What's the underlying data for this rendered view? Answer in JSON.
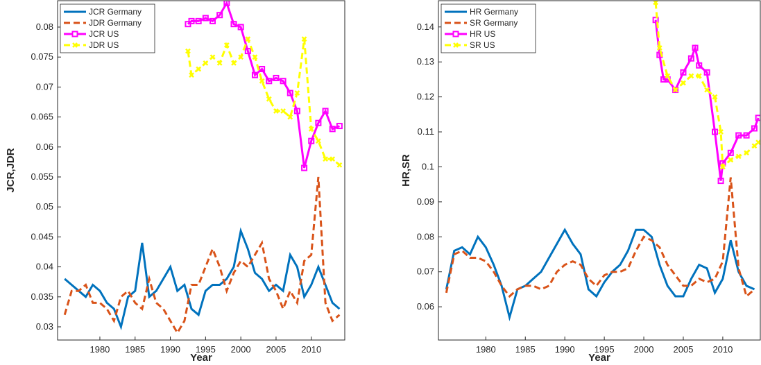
{
  "chart_data": [
    {
      "type": "line",
      "xlabel": "Year",
      "ylabel": "JCR,JDR",
      "xlim": [
        1974,
        2014.75
      ],
      "ylim": [
        0.0278,
        0.0844
      ],
      "xticks": [
        1980,
        1985,
        1990,
        1995,
        2000,
        2005,
        2010
      ],
      "yticks": [
        0.03,
        0.035,
        0.04,
        0.045,
        0.05,
        0.055,
        0.06,
        0.065,
        0.07,
        0.075,
        0.08
      ],
      "legend": "upper left",
      "series": [
        {
          "name": "JCR Germany",
          "color": "#0072bd",
          "dash": false,
          "marker": "none",
          "x": [
            1975,
            1976,
            1977,
            1978,
            1979,
            1980,
            1981,
            1982,
            1983,
            1984,
            1985,
            1986,
            1987,
            1988,
            1989,
            1990,
            1991,
            1992,
            1993,
            1994,
            1995,
            1996,
            1997,
            1998,
            1999,
            2000,
            2001,
            2002,
            2003,
            2004,
            2005,
            2006,
            2007,
            2008,
            2009,
            2010,
            2011,
            2012,
            2013,
            2014
          ],
          "values": [
            0.038,
            0.037,
            0.036,
            0.035,
            0.037,
            0.036,
            0.034,
            0.033,
            0.03,
            0.035,
            0.036,
            0.044,
            0.035,
            0.036,
            0.038,
            0.04,
            0.036,
            0.037,
            0.033,
            0.032,
            0.036,
            0.037,
            0.037,
            0.038,
            0.04,
            0.046,
            0.043,
            0.039,
            0.038,
            0.036,
            0.037,
            0.036,
            0.042,
            0.04,
            0.035,
            0.037,
            0.04,
            0.037,
            0.034,
            0.033
          ]
        },
        {
          "name": "JDR Germany",
          "color": "#d95319",
          "dash": true,
          "marker": "none",
          "x": [
            1975,
            1976,
            1977,
            1978,
            1979,
            1980,
            1981,
            1982,
            1983,
            1984,
            1985,
            1986,
            1987,
            1988,
            1989,
            1990,
            1991,
            1992,
            1993,
            1994,
            1995,
            1996,
            1997,
            1998,
            1999,
            2000,
            2001,
            2002,
            2003,
            2004,
            2005,
            2006,
            2007,
            2008,
            2009,
            2010,
            2011,
            2012,
            2013,
            2014
          ],
          "values": [
            0.032,
            0.036,
            0.036,
            0.037,
            0.034,
            0.034,
            0.033,
            0.031,
            0.035,
            0.036,
            0.034,
            0.033,
            0.038,
            0.034,
            0.033,
            0.031,
            0.029,
            0.031,
            0.037,
            0.037,
            0.04,
            0.043,
            0.04,
            0.036,
            0.039,
            0.041,
            0.04,
            0.042,
            0.044,
            0.038,
            0.036,
            0.033,
            0.036,
            0.034,
            0.041,
            0.042,
            0.055,
            0.034,
            0.031,
            0.032
          ]
        },
        {
          "name": "JCR US",
          "color": "#ff00ff",
          "dash": false,
          "marker": "square",
          "x": [
            1992.5,
            1993,
            1994,
            1995,
            1996,
            1997,
            1998,
            1999,
            2000,
            2001,
            2002,
            2003,
            2004,
            2005,
            2006,
            2007,
            2008,
            2009,
            2010,
            2011,
            2012,
            2013,
            2014
          ],
          "values": [
            0.0805,
            0.081,
            0.081,
            0.0815,
            0.081,
            0.082,
            0.084,
            0.0805,
            0.08,
            0.076,
            0.072,
            0.073,
            0.071,
            0.0715,
            0.071,
            0.069,
            0.066,
            0.0565,
            0.061,
            0.064,
            0.066,
            0.063,
            0.0635
          ]
        },
        {
          "name": "JDR US",
          "color": "#ffff00",
          "dash": true,
          "marker": "x",
          "x": [
            1992.5,
            1993,
            1994,
            1995,
            1996,
            1997,
            1998,
            1999,
            2000,
            2001,
            2002,
            2003,
            2004,
            2005,
            2006,
            2007,
            2008,
            2009,
            2010,
            2011,
            2012,
            2013,
            2014
          ],
          "values": [
            0.076,
            0.072,
            0.073,
            0.074,
            0.075,
            0.074,
            0.077,
            0.074,
            0.075,
            0.078,
            0.075,
            0.071,
            0.068,
            0.066,
            0.066,
            0.065,
            0.069,
            0.078,
            0.063,
            0.061,
            0.058,
            0.058,
            0.057
          ]
        }
      ]
    },
    {
      "type": "line",
      "xlabel": "Year",
      "ylabel": "HR,SR",
      "xlim": [
        1974,
        2014.75
      ],
      "ylim": [
        0.0505,
        0.1475
      ],
      "xticks": [
        1980,
        1985,
        1990,
        1995,
        2000,
        2005,
        2010
      ],
      "yticks": [
        0.06,
        0.07,
        0.08,
        0.09,
        0.1,
        0.11,
        0.12,
        0.13,
        0.14
      ],
      "legend": "upper left",
      "series": [
        {
          "name": "HR Germany",
          "color": "#0072bd",
          "dash": false,
          "marker": "none",
          "x": [
            1975,
            1976,
            1977,
            1978,
            1979,
            1980,
            1981,
            1982,
            1983,
            1984,
            1985,
            1986,
            1987,
            1988,
            1989,
            1990,
            1991,
            1992,
            1993,
            1994,
            1995,
            1996,
            1997,
            1998,
            1999,
            2000,
            2001,
            2002,
            2003,
            2004,
            2005,
            2006,
            2007,
            2008,
            2009,
            2010,
            2011,
            2012,
            2013,
            2014
          ],
          "values": [
            0.065,
            0.076,
            0.077,
            0.075,
            0.08,
            0.077,
            0.072,
            0.066,
            0.057,
            0.065,
            0.066,
            0.068,
            0.07,
            0.074,
            0.078,
            0.082,
            0.078,
            0.075,
            0.065,
            0.063,
            0.067,
            0.07,
            0.072,
            0.076,
            0.082,
            0.082,
            0.08,
            0.072,
            0.066,
            0.063,
            0.063,
            0.068,
            0.072,
            0.071,
            0.064,
            0.068,
            0.079,
            0.07,
            0.066,
            0.065
          ]
        },
        {
          "name": "SR Germany",
          "color": "#d95319",
          "dash": true,
          "marker": "none",
          "x": [
            1975,
            1976,
            1977,
            1978,
            1979,
            1980,
            1981,
            1982,
            1983,
            1984,
            1985,
            1986,
            1987,
            1988,
            1989,
            1990,
            1991,
            1992,
            1993,
            1994,
            1995,
            1996,
            1997,
            1998,
            1999,
            2000,
            2001,
            2002,
            2003,
            2004,
            2005,
            2006,
            2007,
            2008,
            2009,
            2010,
            2011,
            2012,
            2013,
            2014
          ],
          "values": [
            0.064,
            0.075,
            0.076,
            0.074,
            0.074,
            0.073,
            0.07,
            0.066,
            0.063,
            0.065,
            0.066,
            0.066,
            0.065,
            0.066,
            0.07,
            0.072,
            0.073,
            0.072,
            0.068,
            0.066,
            0.069,
            0.07,
            0.07,
            0.071,
            0.076,
            0.08,
            0.079,
            0.077,
            0.072,
            0.069,
            0.066,
            0.066,
            0.068,
            0.067,
            0.068,
            0.073,
            0.097,
            0.071,
            0.063,
            0.065
          ]
        },
        {
          "name": "HR US",
          "color": "#ff00ff",
          "dash": false,
          "marker": "square",
          "x": [
            2001.5,
            2002,
            2002.5,
            2003,
            2004,
            2005,
            2006,
            2006.5,
            2007,
            2008,
            2009,
            2009.75,
            2010,
            2011,
            2012,
            2013,
            2014,
            2014.5
          ],
          "values": [
            0.142,
            0.132,
            0.125,
            0.125,
            0.122,
            0.127,
            0.131,
            0.134,
            0.129,
            0.127,
            0.11,
            0.096,
            0.101,
            0.104,
            0.109,
            0.109,
            0.111,
            0.114
          ]
        },
        {
          "name": "SR US",
          "color": "#ffff00",
          "dash": true,
          "marker": "x",
          "x": [
            2001.5,
            2002,
            2003,
            2004,
            2005,
            2006,
            2007,
            2008,
            2009,
            2009.75,
            2010,
            2011,
            2012,
            2013,
            2014,
            2014.5
          ],
          "values": [
            0.147,
            0.134,
            0.126,
            0.122,
            0.124,
            0.126,
            0.126,
            0.122,
            0.12,
            0.11,
            0.1,
            0.102,
            0.103,
            0.104,
            0.106,
            0.107
          ]
        }
      ]
    }
  ]
}
